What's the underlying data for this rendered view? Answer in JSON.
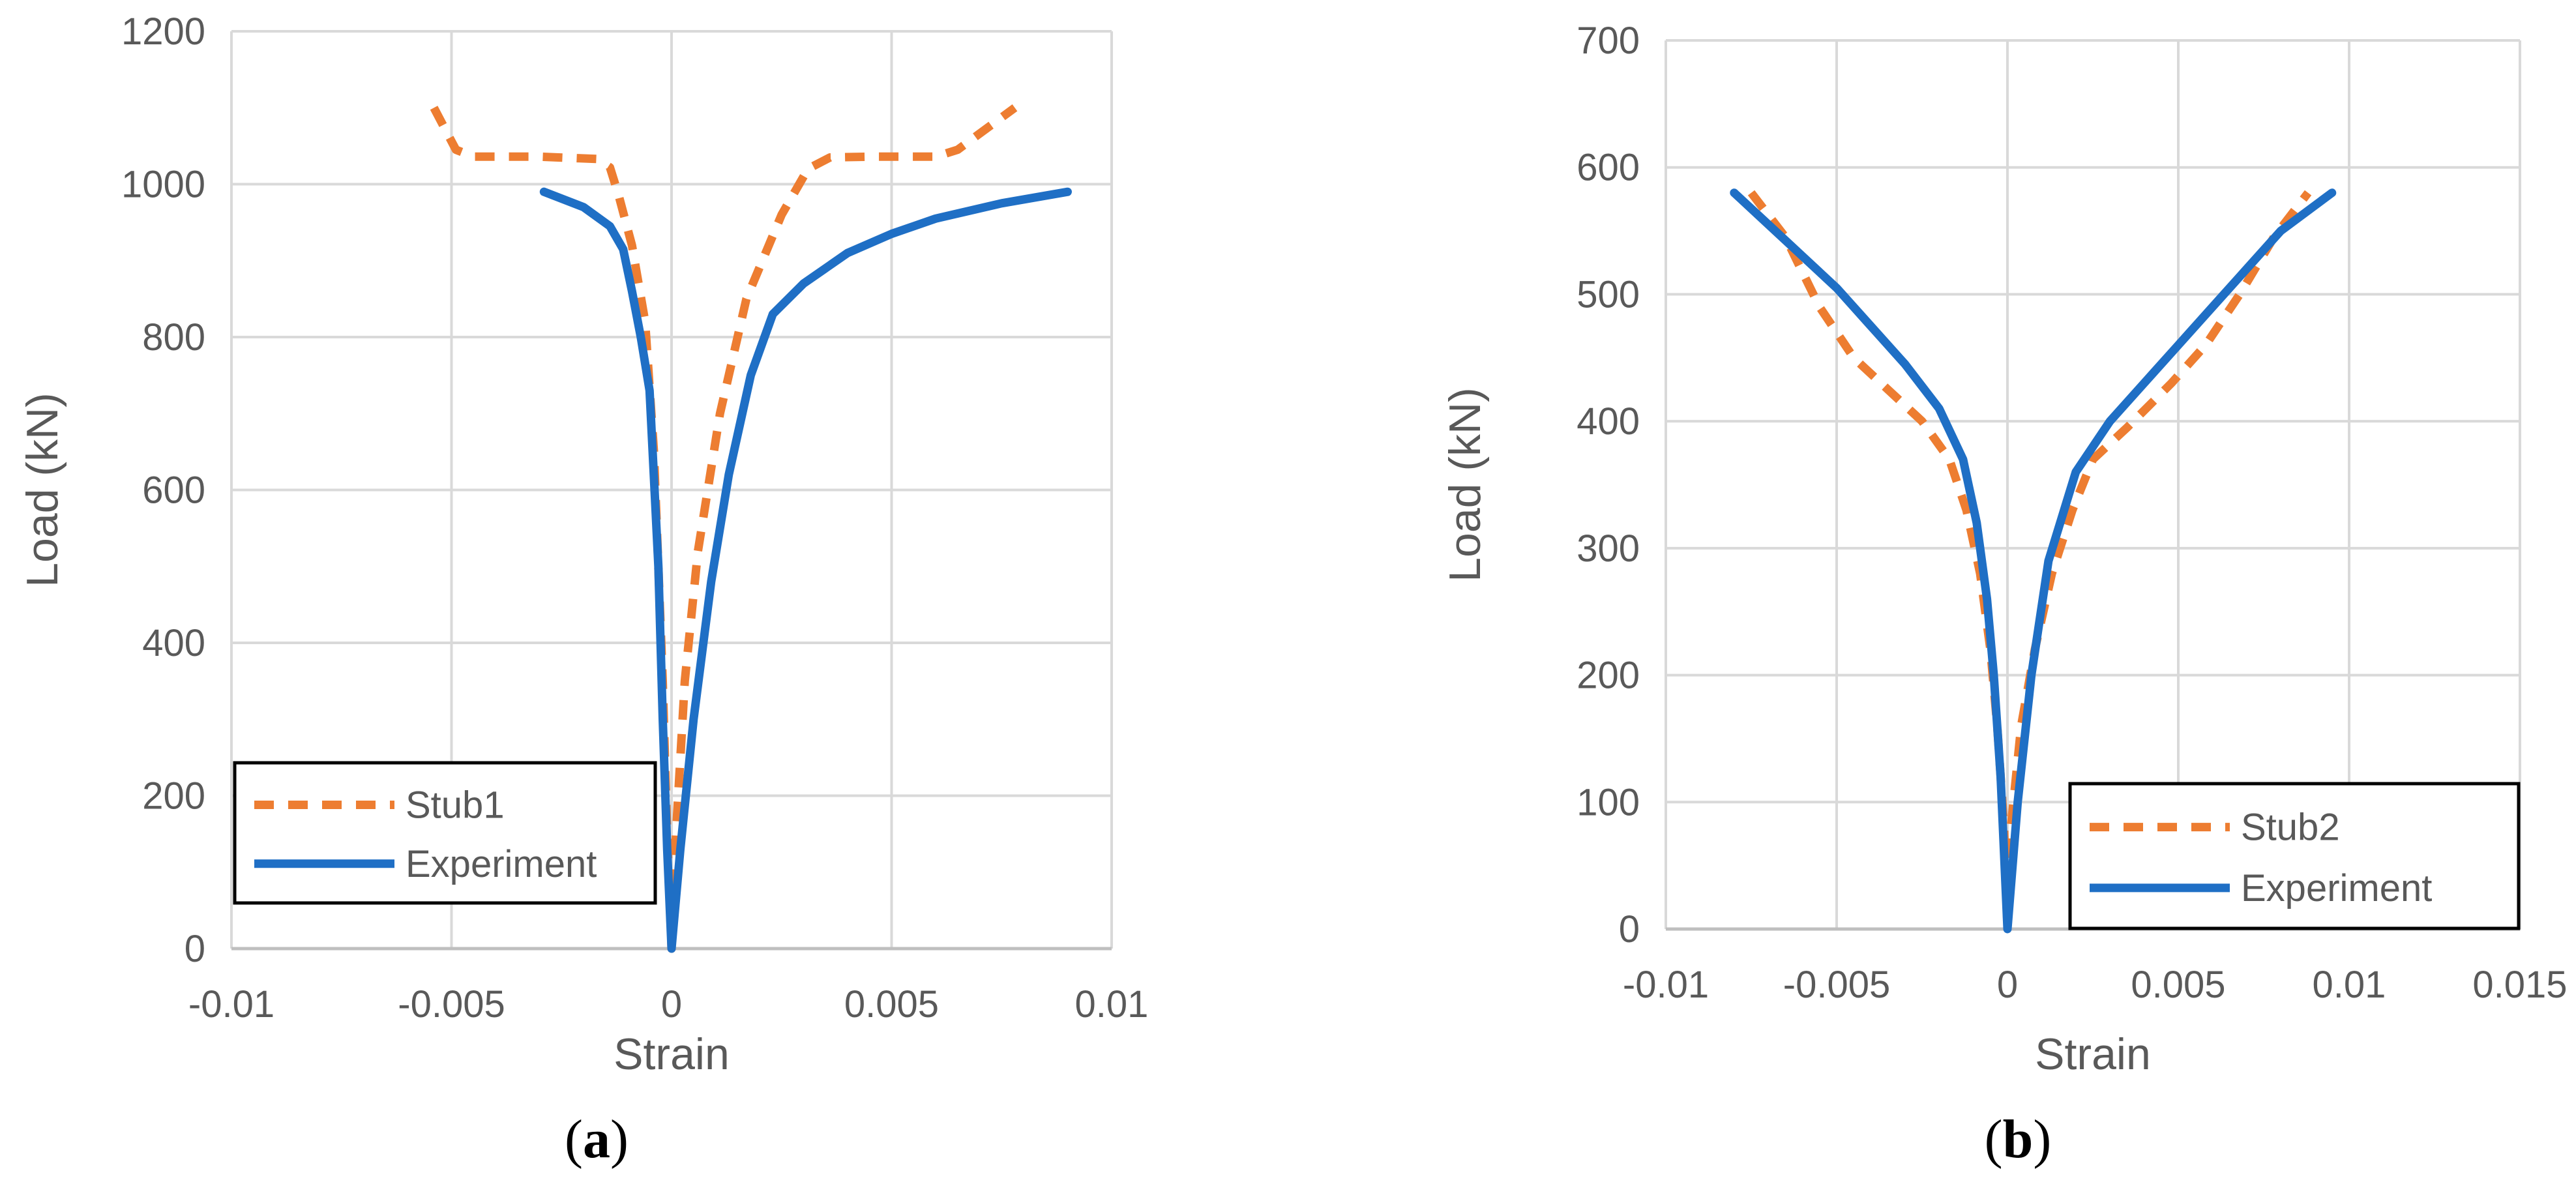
{
  "colors": {
    "stub": "#ED7D31",
    "experiment": "#1F6FC5",
    "grid": "#D9D9D9",
    "axis": "#BFBFBF",
    "text": "#595959"
  },
  "chart_data": [
    {
      "type": "line",
      "caption_open": "(",
      "caption_letter": "a",
      "caption_close": ")",
      "xlabel": "Strain",
      "ylabel": "Load (kN)",
      "xlim": [
        -0.01,
        0.01
      ],
      "ylim": [
        0,
        1200
      ],
      "xticks": [
        -0.01,
        -0.005,
        0,
        0.005,
        0.01
      ],
      "xtick_labels": [
        "-0.01",
        "-0.005",
        "0",
        "0.005",
        "0.01"
      ],
      "yticks": [
        0,
        200,
        400,
        600,
        800,
        1000,
        1200
      ],
      "ytick_labels": [
        "0",
        "200",
        "400",
        "600",
        "800",
        "1000",
        "1200"
      ],
      "grid": true,
      "legend_position": "bottom-left",
      "series": [
        {
          "name": "Stub1",
          "style": "dashed",
          "color": "#ED7D31",
          "points": [
            [
              -0.0054,
              1100
            ],
            [
              -0.0049,
              1045
            ],
            [
              -0.0045,
              1036
            ],
            [
              -0.003,
              1036
            ],
            [
              -0.0017,
              1033
            ],
            [
              -0.0014,
              1022
            ],
            [
              -0.0012,
              985
            ],
            [
              -0.0009,
              920
            ],
            [
              -0.0006,
              820
            ],
            [
              -0.0004,
              650
            ],
            [
              -0.0002,
              350
            ],
            [
              -0.0001,
              150
            ],
            [
              0,
              0
            ],
            [
              0.0001,
              150
            ],
            [
              0.0003,
              350
            ],
            [
              0.0006,
              520
            ],
            [
              0.0011,
              700
            ],
            [
              0.0017,
              850
            ],
            [
              0.0025,
              960
            ],
            [
              0.0031,
              1020
            ],
            [
              0.0036,
              1035
            ],
            [
              0.0045,
              1036
            ],
            [
              0.006,
              1036
            ],
            [
              0.0065,
              1045
            ],
            [
              0.0078,
              1100
            ]
          ]
        },
        {
          "name": "Experiment",
          "style": "solid",
          "color": "#1F6FC5",
          "points": [
            [
              -0.0029,
              990
            ],
            [
              -0.002,
              970
            ],
            [
              -0.0014,
              945
            ],
            [
              -0.0011,
              915
            ],
            [
              -0.0009,
              860
            ],
            [
              -0.0007,
              800
            ],
            [
              -0.0005,
              730
            ],
            [
              -0.0003,
              500
            ],
            [
              -0.0002,
              300
            ],
            [
              -0.0001,
              130
            ],
            [
              0,
              0
            ],
            [
              0.0002,
              130
            ],
            [
              0.0005,
              300
            ],
            [
              0.0009,
              480
            ],
            [
              0.0013,
              620
            ],
            [
              0.0018,
              750
            ],
            [
              0.0023,
              830
            ],
            [
              0.003,
              870
            ],
            [
              0.004,
              910
            ],
            [
              0.005,
              935
            ],
            [
              0.006,
              955
            ],
            [
              0.0075,
              975
            ],
            [
              0.009,
              990
            ]
          ]
        }
      ]
    },
    {
      "type": "line",
      "caption_open": "(",
      "caption_letter": "b",
      "caption_close": ")",
      "xlabel": "Strain",
      "ylabel": "Load (kN)",
      "xlim": [
        -0.01,
        0.015
      ],
      "ylim": [
        0,
        700
      ],
      "xticks": [
        -0.01,
        -0.005,
        0,
        0.005,
        0.01,
        0.015
      ],
      "xtick_labels": [
        "-0.01",
        "-0.005",
        "0",
        "0.005",
        "0.01",
        "0.015"
      ],
      "yticks": [
        0,
        100,
        200,
        300,
        400,
        500,
        600,
        700
      ],
      "ytick_labels": [
        "0",
        "100",
        "200",
        "300",
        "400",
        "500",
        "600",
        "700"
      ],
      "grid": true,
      "legend_position": "bottom-right",
      "series": [
        {
          "name": "Stub2",
          "style": "dashed",
          "color": "#ED7D31",
          "points": [
            [
              -0.0075,
              580
            ],
            [
              -0.0065,
              545
            ],
            [
              -0.0055,
              490
            ],
            [
              -0.0045,
              450
            ],
            [
              -0.0035,
              425
            ],
            [
              -0.0025,
              400
            ],
            [
              -0.0017,
              370
            ],
            [
              -0.0012,
              330
            ],
            [
              -0.0008,
              280
            ],
            [
              -0.0005,
              220
            ],
            [
              -0.0003,
              160
            ],
            [
              -0.0001,
              80
            ],
            [
              0,
              0
            ],
            [
              0.0001,
              80
            ],
            [
              0.0004,
              160
            ],
            [
              0.0008,
              220
            ],
            [
              0.0013,
              280
            ],
            [
              0.0019,
              330
            ],
            [
              0.0025,
              370
            ],
            [
              0.0035,
              395
            ],
            [
              0.0048,
              430
            ],
            [
              0.0058,
              460
            ],
            [
              0.0068,
              500
            ],
            [
              0.0078,
              545
            ],
            [
              0.0088,
              580
            ]
          ]
        },
        {
          "name": "Experiment",
          "style": "solid",
          "color": "#1F6FC5",
          "points": [
            [
              -0.008,
              580
            ],
            [
              -0.007,
              555
            ],
            [
              -0.006,
              530
            ],
            [
              -0.005,
              505
            ],
            [
              -0.004,
              475
            ],
            [
              -0.003,
              445
            ],
            [
              -0.002,
              410
            ],
            [
              -0.0013,
              370
            ],
            [
              -0.0009,
              320
            ],
            [
              -0.0006,
              260
            ],
            [
              -0.0004,
              200
            ],
            [
              -0.0002,
              120
            ],
            [
              0,
              0
            ],
            [
              0.0003,
              100
            ],
            [
              0.0007,
              200
            ],
            [
              0.0012,
              290
            ],
            [
              0.002,
              360
            ],
            [
              0.003,
              400
            ],
            [
              0.004,
              430
            ],
            [
              0.005,
              460
            ],
            [
              0.006,
              490
            ],
            [
              0.007,
              520
            ],
            [
              0.008,
              550
            ],
            [
              0.0095,
              580
            ]
          ]
        }
      ]
    }
  ]
}
